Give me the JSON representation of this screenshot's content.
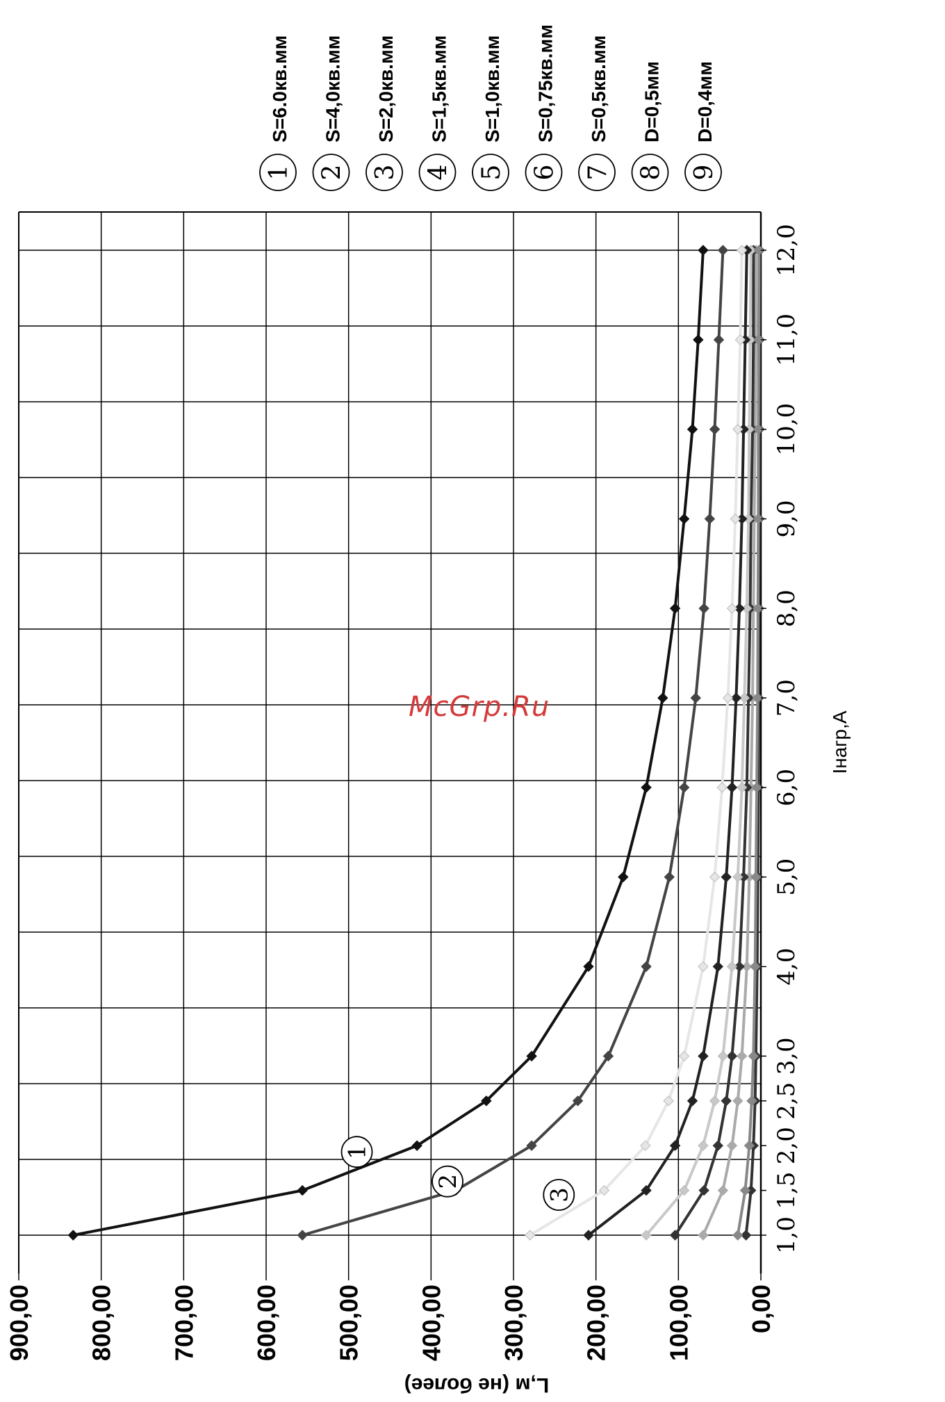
{
  "watermark": "McGrp.Ru",
  "chart_data": {
    "type": "line",
    "orientation": "rotated-90-clockwise",
    "xlabel": "Iнагр,А",
    "ylabel": "L,м (не более)",
    "x": [
      1.0,
      1.5,
      2.0,
      2.5,
      3.0,
      4.0,
      5.0,
      6.0,
      7.0,
      8.0,
      9.0,
      10.0,
      11.0,
      12.0
    ],
    "x_tick_labels": [
      "1,0",
      "1,5",
      "2,0",
      "2,5",
      "3,0",
      "4,0",
      "5,0",
      "6,0",
      "7,0",
      "8,0",
      "9,0",
      "10,0",
      "11,0",
      "12,0"
    ],
    "y_tick_values": [
      0,
      100,
      200,
      300,
      400,
      500,
      600,
      700,
      800,
      900
    ],
    "y_tick_labels": [
      "0,00",
      "100,00",
      "200,00",
      "300,00",
      "400,00",
      "500,00",
      "600,00",
      "700,00",
      "800,00",
      "900,00"
    ],
    "ylim": [
      0,
      900
    ],
    "grid": true,
    "legend_placement": "top-right",
    "series": [
      {
        "name": "S=6.0кв.мм",
        "marker": "1",
        "color": "#111111",
        "values": [
          834,
          556,
          417,
          333,
          278,
          209,
          167,
          139,
          119,
          104,
          93,
          83,
          76,
          70
        ]
      },
      {
        "name": "S=4,0кв.мм",
        "marker": "2",
        "color": "#444444",
        "values": [
          556,
          370,
          278,
          222,
          185,
          139,
          111,
          93,
          79,
          69,
          62,
          56,
          51,
          46
        ]
      },
      {
        "name": "S=2,0кв.мм",
        "marker": "3",
        "color": "#e6e6e6",
        "values": [
          280,
          190,
          140,
          112,
          93,
          70,
          56,
          47,
          40,
          35,
          31,
          28,
          25,
          23
        ]
      },
      {
        "name": "S=1,5кв.мм",
        "marker": "4",
        "color": "#222222",
        "values": [
          209,
          139,
          104,
          83,
          70,
          52,
          42,
          35,
          30,
          26,
          23,
          21,
          19,
          17
        ]
      },
      {
        "name": "S=1,0кв.мм",
        "marker": "5",
        "color": "#c8c8c8",
        "values": [
          139,
          93,
          70,
          56,
          46,
          35,
          28,
          23,
          20,
          17,
          15,
          14,
          13,
          12
        ]
      },
      {
        "name": "S=0,75кв.мм",
        "marker": "6",
        "color": "#333333",
        "values": [
          104,
          69,
          52,
          42,
          35,
          26,
          21,
          17,
          15,
          13,
          12,
          10,
          9,
          9
        ]
      },
      {
        "name": "S=0,5кв.мм",
        "marker": "7",
        "color": "#aaaaaa",
        "values": [
          70,
          46,
          35,
          28,
          23,
          17,
          14,
          12,
          10,
          9,
          8,
          7,
          6,
          6
        ]
      },
      {
        "name": "D=0,5мм",
        "marker": "8",
        "color": "#888888",
        "values": [
          28,
          19,
          14,
          11,
          9,
          7,
          6,
          5,
          4,
          3.5,
          3,
          3,
          2.5,
          2.3
        ]
      },
      {
        "name": "D=0,4мм",
        "marker": "9",
        "color": "#333333",
        "values": [
          18,
          12,
          9,
          7,
          6,
          4.5,
          3.6,
          3,
          2.6,
          2.3,
          2,
          1.8,
          1.6,
          1.5
        ]
      }
    ]
  }
}
